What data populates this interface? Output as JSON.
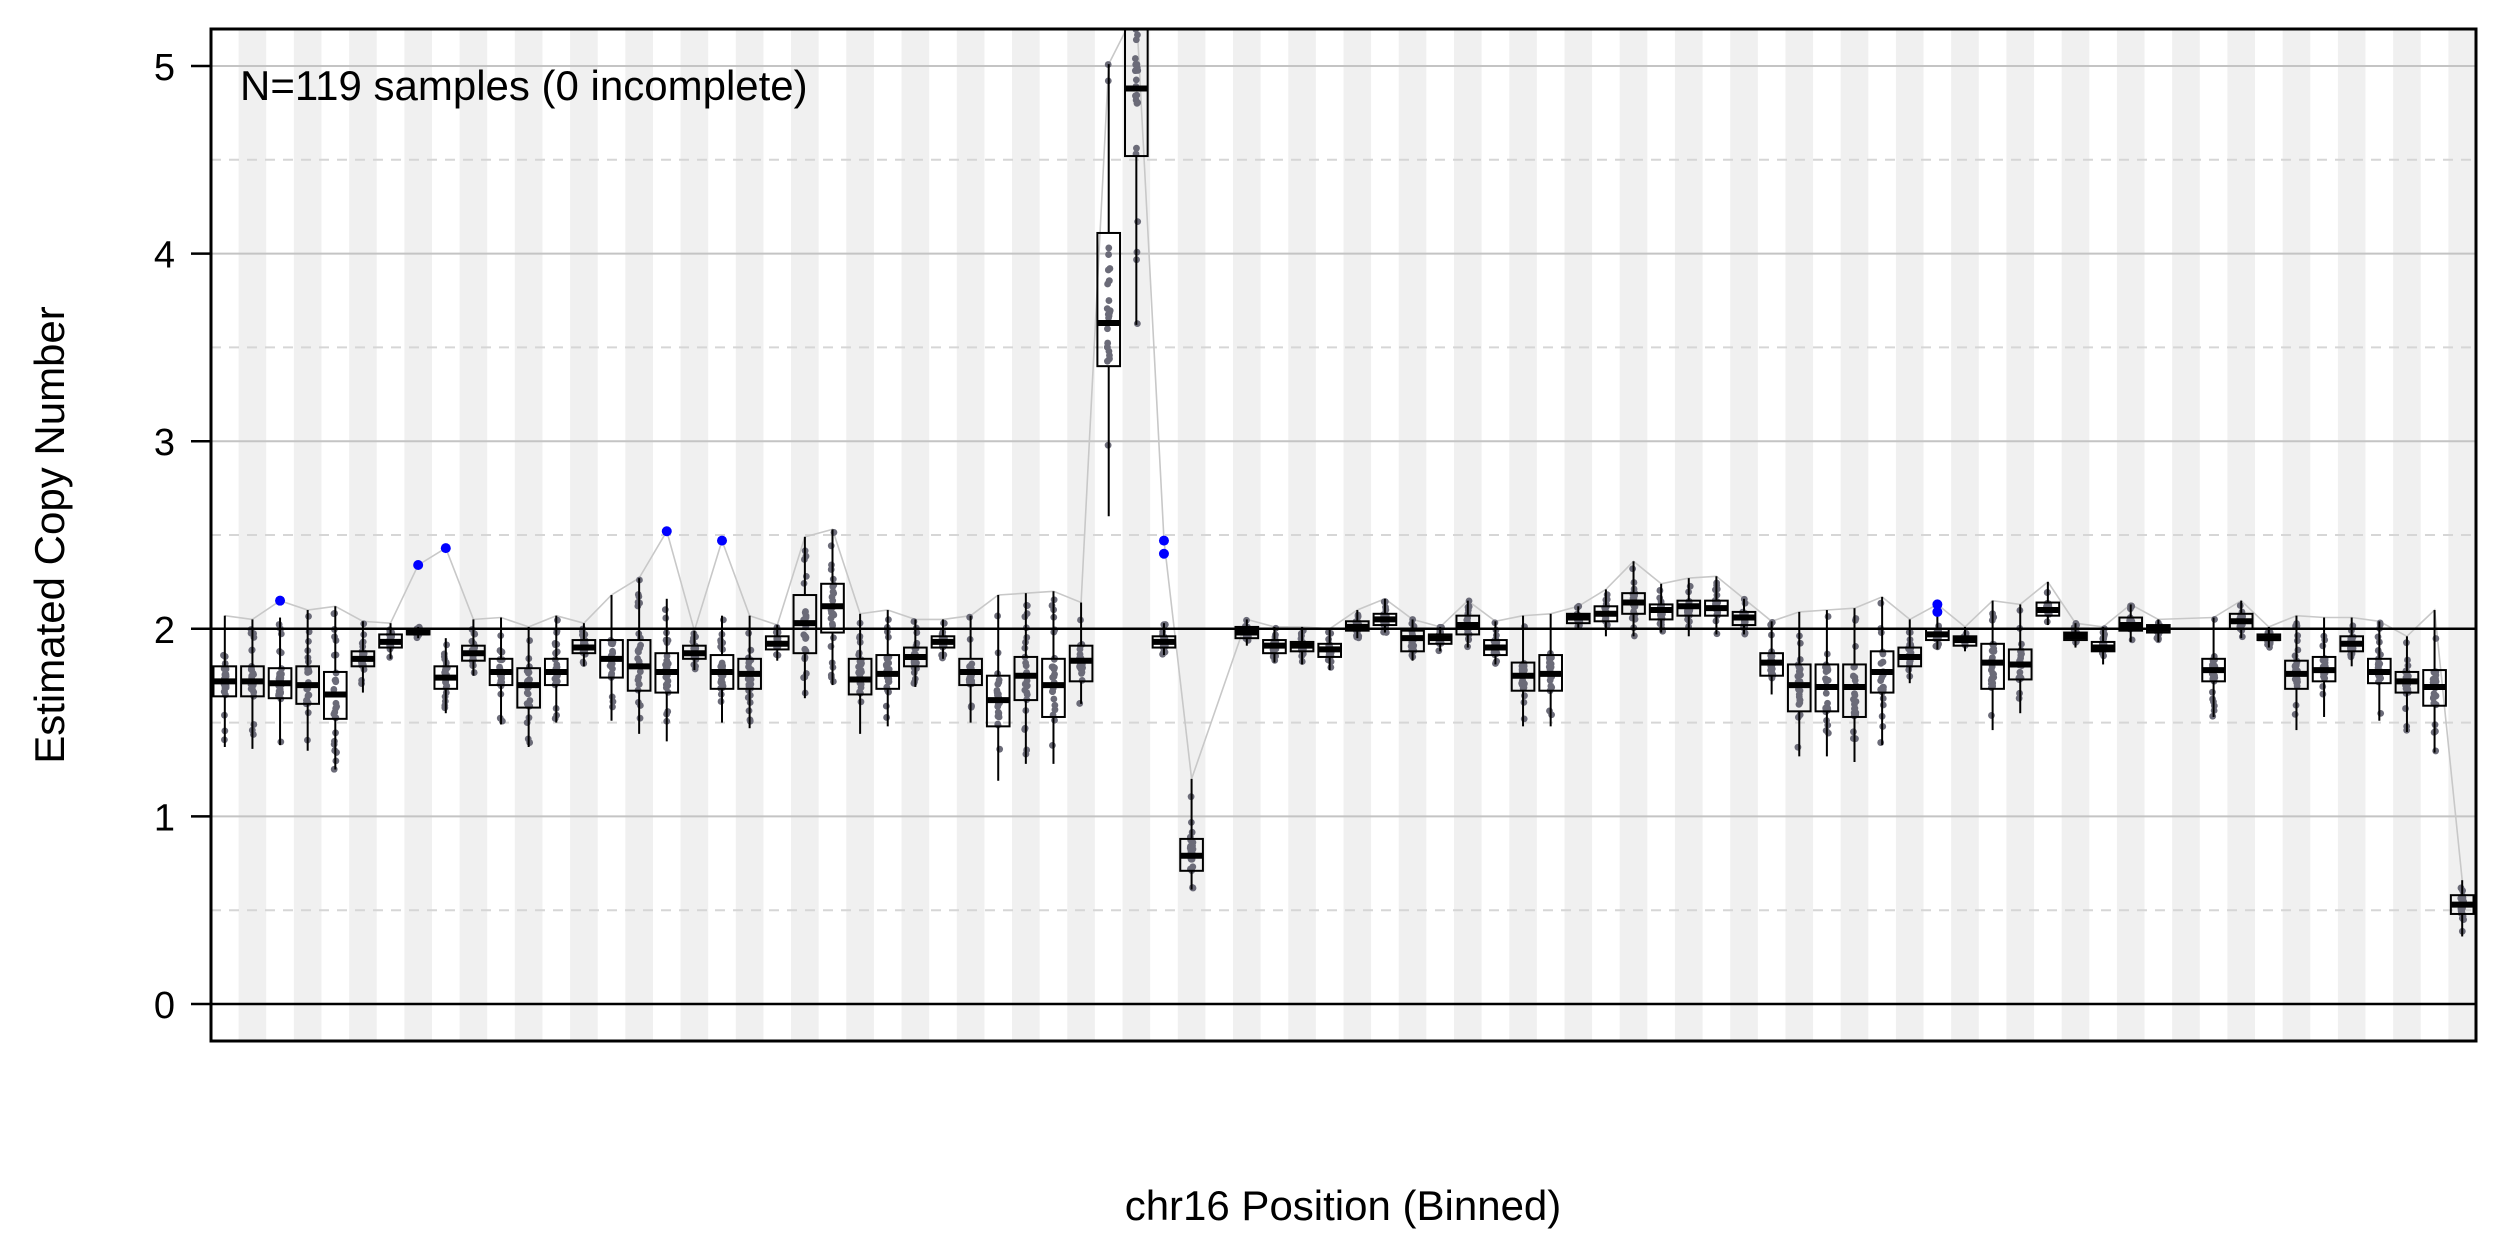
{
  "chart_data": {
    "type": "box",
    "annotation": "N=119 samples (0 incomplete)",
    "xlabel": "chr16 Position (Binned)",
    "ylabel": "Estimated Copy Number",
    "ylim": [
      -0.2,
      5.2
    ],
    "yticks": [
      "0",
      "1",
      "2",
      "3",
      "4",
      "5"
    ],
    "grid": "major solid, minor dashed at 0.5",
    "reference_lines": [
      0,
      2
    ],
    "bin_count": 80,
    "colors": {
      "stripe": "#f0f0f0",
      "outlier_dot": "#0000ff",
      "sample_dot": "#6b6b78",
      "box": "#000000",
      "connector": "#c8c8c8"
    },
    "bins": [
      {
        "i": 0,
        "min": 1.37,
        "q1": 1.64,
        "med": 1.72,
        "q3": 1.8,
        "max": 2.07
      },
      {
        "i": 1,
        "min": 1.36,
        "q1": 1.64,
        "med": 1.72,
        "q3": 1.8,
        "max": 2.05
      },
      {
        "i": 2,
        "min": 1.38,
        "q1": 1.63,
        "med": 1.71,
        "q3": 1.79,
        "max": 2.06,
        "out": [
          2.15
        ]
      },
      {
        "i": 3,
        "min": 1.35,
        "q1": 1.6,
        "med": 1.7,
        "q3": 1.8,
        "max": 2.1
      },
      {
        "i": 4,
        "min": 1.25,
        "q1": 1.52,
        "med": 1.65,
        "q3": 1.77,
        "max": 2.12
      },
      {
        "i": 5,
        "min": 1.66,
        "q1": 1.8,
        "med": 1.84,
        "q3": 1.88,
        "max": 2.04
      },
      {
        "i": 6,
        "min": 1.84,
        "q1": 1.9,
        "med": 1.93,
        "q3": 1.97,
        "max": 2.03
      },
      {
        "i": 7,
        "min": 1.95,
        "q1": 1.97,
        "med": 1.98,
        "q3": 1.99,
        "max": 2.01,
        "out": [
          2.34
        ]
      },
      {
        "i": 8,
        "min": 1.55,
        "q1": 1.68,
        "med": 1.74,
        "q3": 1.8,
        "max": 1.95,
        "out": [
          2.43
        ]
      },
      {
        "i": 9,
        "min": 1.75,
        "q1": 1.83,
        "med": 1.87,
        "q3": 1.91,
        "max": 2.05
      },
      {
        "i": 10,
        "min": 1.49,
        "q1": 1.7,
        "med": 1.77,
        "q3": 1.84,
        "max": 2.06
      },
      {
        "i": 11,
        "min": 1.37,
        "q1": 1.58,
        "med": 1.7,
        "q3": 1.79,
        "max": 2.01
      },
      {
        "i": 12,
        "min": 1.5,
        "q1": 1.7,
        "med": 1.77,
        "q3": 1.84,
        "max": 2.07
      },
      {
        "i": 13,
        "min": 1.8,
        "q1": 1.87,
        "med": 1.9,
        "q3": 1.94,
        "max": 2.03
      },
      {
        "i": 14,
        "min": 1.51,
        "q1": 1.74,
        "med": 1.84,
        "q3": 1.94,
        "max": 2.18
      },
      {
        "i": 15,
        "min": 1.44,
        "q1": 1.67,
        "med": 1.8,
        "q3": 1.94,
        "max": 2.27
      },
      {
        "i": 16,
        "min": 1.4,
        "q1": 1.66,
        "med": 1.77,
        "q3": 1.87,
        "max": 2.16,
        "out": [
          2.52
        ]
      },
      {
        "i": 17,
        "min": 1.78,
        "q1": 1.84,
        "med": 1.87,
        "q3": 1.91,
        "max": 1.99
      },
      {
        "i": 18,
        "min": 1.5,
        "q1": 1.68,
        "med": 1.77,
        "q3": 1.86,
        "max": 2.07,
        "out": [
          2.47
        ]
      },
      {
        "i": 19,
        "min": 1.47,
        "q1": 1.68,
        "med": 1.76,
        "q3": 1.84,
        "max": 2.07
      },
      {
        "i": 20,
        "min": 1.83,
        "q1": 1.89,
        "med": 1.92,
        "q3": 1.96,
        "max": 2.02
      },
      {
        "i": 21,
        "min": 1.63,
        "q1": 1.87,
        "med": 2.03,
        "q3": 2.18,
        "max": 2.49
      },
      {
        "i": 22,
        "min": 1.7,
        "q1": 1.98,
        "med": 2.12,
        "q3": 2.24,
        "max": 2.53
      },
      {
        "i": 23,
        "min": 1.44,
        "q1": 1.65,
        "med": 1.73,
        "q3": 1.84,
        "max": 2.08
      },
      {
        "i": 24,
        "min": 1.48,
        "q1": 1.68,
        "med": 1.76,
        "q3": 1.86,
        "max": 2.1
      },
      {
        "i": 25,
        "min": 1.69,
        "q1": 1.8,
        "med": 1.85,
        "q3": 1.9,
        "max": 2.05
      },
      {
        "i": 26,
        "min": 1.84,
        "q1": 1.9,
        "med": 1.93,
        "q3": 1.96,
        "max": 2.05
      },
      {
        "i": 27,
        "min": 1.5,
        "q1": 1.7,
        "med": 1.77,
        "q3": 1.84,
        "max": 2.07
      },
      {
        "i": 28,
        "min": 1.19,
        "q1": 1.48,
        "med": 1.62,
        "q3": 1.75,
        "max": 2.18
      },
      {
        "i": 29,
        "min": 1.28,
        "q1": 1.62,
        "med": 1.75,
        "q3": 1.85,
        "max": 2.19
      },
      {
        "i": 30,
        "min": 1.28,
        "q1": 1.53,
        "med": 1.7,
        "q3": 1.84,
        "max": 2.2
      },
      {
        "i": 31,
        "min": 1.6,
        "q1": 1.72,
        "med": 1.83,
        "q3": 1.91,
        "max": 2.14
      },
      {
        "i": 32,
        "min": 2.6,
        "q1": 3.4,
        "med": 3.63,
        "q3": 4.11,
        "max": 5.01
      },
      {
        "i": 33,
        "min": 3.62,
        "q1": 4.52,
        "med": 4.88,
        "q3": 5.3,
        "max": 5.3
      },
      {
        "i": 34,
        "min": 1.86,
        "q1": 1.9,
        "med": 1.93,
        "q3": 1.96,
        "max": 2.03,
        "out": [
          2.47,
          2.4
        ]
      },
      {
        "i": 35,
        "min": 0.61,
        "q1": 0.71,
        "med": 0.79,
        "q3": 0.88,
        "max": 1.2
      },
      {
        "i": 36,
        "empty": true
      },
      {
        "i": 37,
        "min": 1.91,
        "q1": 1.95,
        "med": 1.98,
        "q3": 2.01,
        "max": 2.05
      },
      {
        "i": 38,
        "min": 1.82,
        "q1": 1.87,
        "med": 1.91,
        "q3": 1.94,
        "max": 2.01
      },
      {
        "i": 39,
        "min": 1.81,
        "q1": 1.88,
        "med": 1.91,
        "q3": 1.93,
        "max": 2.01
      },
      {
        "i": 40,
        "min": 1.78,
        "q1": 1.85,
        "med": 1.89,
        "q3": 1.92,
        "max": 2.0
      },
      {
        "i": 41,
        "min": 1.95,
        "q1": 1.99,
        "med": 2.01,
        "q3": 2.04,
        "max": 2.1
      },
      {
        "i": 42,
        "min": 1.98,
        "q1": 2.02,
        "med": 2.05,
        "q3": 2.08,
        "max": 2.16
      },
      {
        "i": 43,
        "min": 1.83,
        "q1": 1.88,
        "med": 1.95,
        "q3": 1.99,
        "max": 2.05
      },
      {
        "i": 44,
        "min": 1.88,
        "q1": 1.92,
        "med": 1.95,
        "q3": 1.97,
        "max": 2.01
      },
      {
        "i": 45,
        "min": 1.9,
        "q1": 1.97,
        "med": 2.02,
        "q3": 2.07,
        "max": 2.15
      },
      {
        "i": 46,
        "min": 1.81,
        "q1": 1.86,
        "med": 1.9,
        "q3": 1.94,
        "max": 2.04
      },
      {
        "i": 47,
        "min": 1.48,
        "q1": 1.67,
        "med": 1.75,
        "q3": 1.82,
        "max": 2.07
      },
      {
        "i": 48,
        "min": 1.48,
        "q1": 1.67,
        "med": 1.76,
        "q3": 1.86,
        "max": 2.08
      },
      {
        "i": 49,
        "min": 2.0,
        "q1": 2.03,
        "med": 2.06,
        "q3": 2.08,
        "max": 2.12
      },
      {
        "i": 50,
        "min": 1.96,
        "q1": 2.04,
        "med": 2.08,
        "q3": 2.12,
        "max": 2.21
      },
      {
        "i": 51,
        "min": 1.96,
        "q1": 2.08,
        "med": 2.14,
        "q3": 2.19,
        "max": 2.36
      },
      {
        "i": 52,
        "min": 1.98,
        "q1": 2.05,
        "med": 2.1,
        "q3": 2.13,
        "max": 2.24
      },
      {
        "i": 53,
        "min": 1.96,
        "q1": 2.07,
        "med": 2.12,
        "q3": 2.15,
        "max": 2.27
      },
      {
        "i": 54,
        "min": 1.97,
        "q1": 2.07,
        "med": 2.11,
        "q3": 2.15,
        "max": 2.28
      },
      {
        "i": 55,
        "min": 1.97,
        "q1": 2.02,
        "med": 2.06,
        "q3": 2.09,
        "max": 2.16
      },
      {
        "i": 56,
        "min": 1.65,
        "q1": 1.75,
        "med": 1.82,
        "q3": 1.87,
        "max": 2.04
      },
      {
        "i": 57,
        "min": 1.32,
        "q1": 1.56,
        "med": 1.7,
        "q3": 1.81,
        "max": 2.09
      },
      {
        "i": 58,
        "min": 1.32,
        "q1": 1.56,
        "med": 1.69,
        "q3": 1.81,
        "max": 2.1
      },
      {
        "i": 59,
        "min": 1.29,
        "q1": 1.53,
        "med": 1.69,
        "q3": 1.81,
        "max": 2.11
      },
      {
        "i": 60,
        "min": 1.38,
        "q1": 1.66,
        "med": 1.77,
        "q3": 1.88,
        "max": 2.17
      },
      {
        "i": 61,
        "min": 1.71,
        "q1": 1.8,
        "med": 1.85,
        "q3": 1.9,
        "max": 2.05
      },
      {
        "i": 62,
        "min": 1.89,
        "q1": 1.94,
        "med": 1.97,
        "q3": 2.0,
        "max": 2.07,
        "out": [
          2.13,
          2.09
        ]
      },
      {
        "i": 63,
        "min": 1.88,
        "q1": 1.91,
        "med": 1.94,
        "q3": 1.96,
        "max": 2.01
      },
      {
        "i": 64,
        "min": 1.46,
        "q1": 1.68,
        "med": 1.82,
        "q3": 1.92,
        "max": 2.15
      },
      {
        "i": 65,
        "min": 1.55,
        "q1": 1.73,
        "med": 1.81,
        "q3": 1.89,
        "max": 2.13
      },
      {
        "i": 66,
        "min": 2.02,
        "q1": 2.07,
        "med": 2.1,
        "q3": 2.14,
        "max": 2.25
      },
      {
        "i": 67,
        "min": 1.9,
        "q1": 1.94,
        "med": 1.96,
        "q3": 1.98,
        "max": 2.03
      },
      {
        "i": 68,
        "min": 1.81,
        "q1": 1.88,
        "med": 1.9,
        "q3": 1.93,
        "max": 2.01
      },
      {
        "i": 69,
        "min": 1.93,
        "q1": 1.99,
        "med": 2.02,
        "q3": 2.06,
        "max": 2.13
      },
      {
        "i": 70,
        "min": 1.93,
        "q1": 1.98,
        "med": 2.0,
        "q3": 2.02,
        "max": 2.05
      },
      {
        "i": 71,
        "empty": true
      },
      {
        "i": 72,
        "min": 1.53,
        "q1": 1.72,
        "med": 1.78,
        "q3": 1.84,
        "max": 2.06
      },
      {
        "i": 73,
        "min": 1.95,
        "q1": 2.0,
        "med": 2.04,
        "q3": 2.08,
        "max": 2.15
      },
      {
        "i": 74,
        "min": 1.9,
        "q1": 1.94,
        "med": 1.95,
        "q3": 1.97,
        "max": 2.01
      },
      {
        "i": 75,
        "min": 1.46,
        "q1": 1.68,
        "med": 1.76,
        "q3": 1.83,
        "max": 2.07
      },
      {
        "i": 76,
        "min": 1.53,
        "q1": 1.72,
        "med": 1.78,
        "q3": 1.85,
        "max": 2.06
      },
      {
        "i": 77,
        "min": 1.8,
        "q1": 1.88,
        "med": 1.92,
        "q3": 1.96,
        "max": 2.06
      },
      {
        "i": 78,
        "min": 1.51,
        "q1": 1.71,
        "med": 1.77,
        "q3": 1.84,
        "max": 2.04
      },
      {
        "i": 79,
        "min": 1.45,
        "q1": 1.66,
        "med": 1.72,
        "q3": 1.77,
        "max": 1.96
      },
      {
        "i": 80,
        "min": 1.34,
        "q1": 1.59,
        "med": 1.69,
        "q3": 1.78,
        "max": 2.1
      },
      {
        "i": 81,
        "min": 0.36,
        "q1": 0.48,
        "med": 0.53,
        "q3": 0.58,
        "max": 0.66
      }
    ]
  }
}
